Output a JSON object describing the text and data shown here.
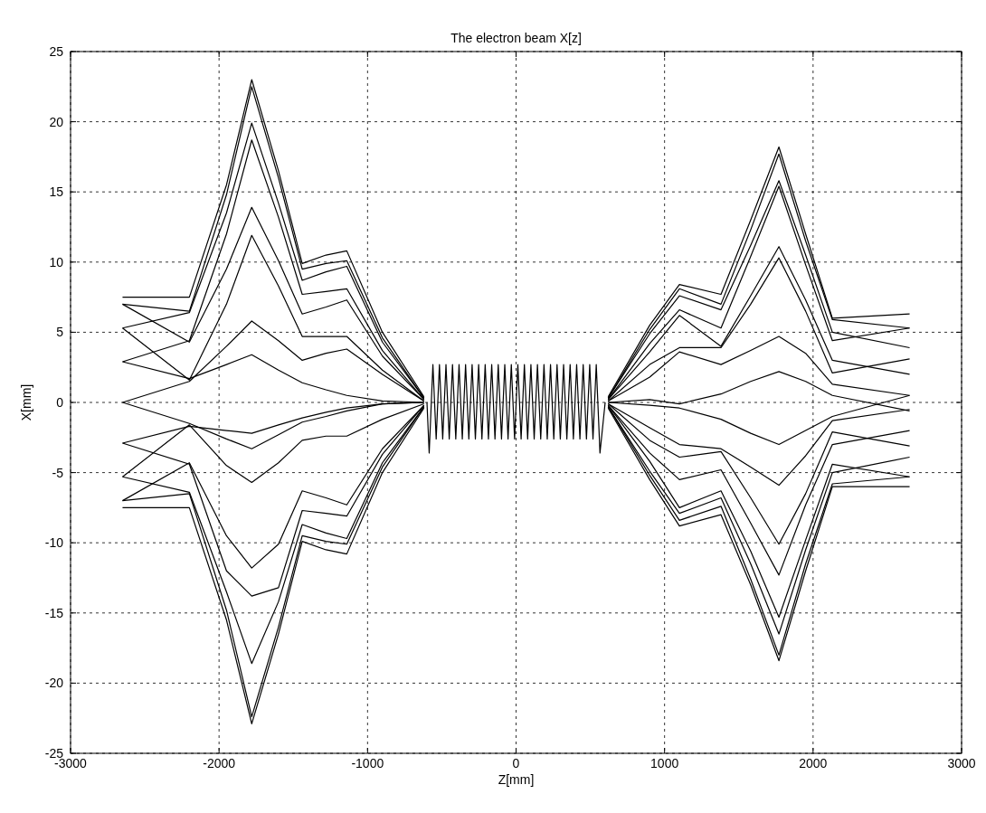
{
  "chart_data": {
    "type": "line",
    "title": "The electron beam X[z]",
    "xlabel": "Z[mm]",
    "ylabel": "X[mm]",
    "xlim": [
      -3000,
      3000
    ],
    "xticks": [
      -3000,
      -2000,
      -1000,
      0,
      1000,
      2000,
      3000
    ],
    "ylim": [
      -25,
      25
    ],
    "yticks": [
      -25,
      -20,
      -15,
      -10,
      -5,
      0,
      5,
      10,
      15,
      20,
      25
    ],
    "grid": true,
    "series": [
      {
        "color": "#000000",
        "x": [
          -2650,
          -2200,
          -1950,
          -1780,
          -1600,
          -1440,
          -1280,
          -1140,
          -900,
          -620
        ],
        "values": [
          7.5,
          7.5,
          15.5,
          23.0,
          16.5,
          9.9,
          10.5,
          10.8,
          5.0,
          0.4
        ]
      },
      {
        "color": "#000000",
        "x": [
          -2650,
          -2200,
          -1950,
          -1780,
          -1600,
          -1440,
          -1280,
          -1140,
          -900,
          -620
        ],
        "values": [
          7.0,
          6.5,
          14.8,
          22.5,
          16.0,
          9.5,
          9.9,
          10.1,
          4.6,
          0.3
        ]
      },
      {
        "color": "#000000",
        "x": [
          -2650,
          -2200,
          -1950,
          -1780,
          -1600,
          -1440,
          -1280,
          -1140,
          -900,
          -620
        ],
        "values": [
          5.3,
          6.4,
          13.5,
          19.9,
          14.2,
          8.7,
          9.3,
          9.7,
          4.3,
          0.3
        ]
      },
      {
        "color": "#000000",
        "x": [
          -2650,
          -2200,
          -1950,
          -1780,
          -1600,
          -1440,
          -1280,
          -1140,
          -900,
          -620
        ],
        "values": [
          2.9,
          4.4,
          12.0,
          18.7,
          13.2,
          7.7,
          7.9,
          8.1,
          3.7,
          0.2
        ]
      },
      {
        "color": "#000000",
        "x": [
          -2650,
          -2200,
          -1950,
          -1780,
          -1600,
          -1440,
          -1280,
          -1140,
          -900,
          -620
        ],
        "values": [
          7.0,
          4.3,
          9.5,
          13.9,
          10.1,
          6.3,
          6.8,
          7.3,
          3.3,
          0.2
        ]
      },
      {
        "color": "#000000",
        "x": [
          -2650,
          -2200,
          -1950,
          -1780,
          -1600,
          -1440,
          -1280,
          -1140,
          -900,
          -620
        ],
        "values": [
          5.3,
          1.6,
          7.0,
          11.9,
          8.3,
          4.7,
          4.7,
          4.7,
          2.3,
          0.1
        ]
      },
      {
        "color": "#000000",
        "x": [
          -2650,
          -2200,
          -1950,
          -1780,
          -1600,
          -1440,
          -1280,
          -1140,
          -900,
          -620
        ],
        "values": [
          0,
          1.5,
          4.0,
          5.8,
          4.4,
          3.0,
          3.5,
          3.8,
          2.0,
          0.1
        ]
      },
      {
        "color": "#000000",
        "x": [
          -2650,
          -2200,
          -1950,
          -1780,
          -1600,
          -1440,
          -1280,
          -1140,
          -900,
          -620
        ],
        "values": [
          2.9,
          1.7,
          2.7,
          3.4,
          2.3,
          1.4,
          0.9,
          0.5,
          0.1,
          0
        ]
      },
      {
        "color": "#000000",
        "x": [
          -2650,
          -2200,
          -1950,
          -1780,
          -1600,
          -1440,
          -1280,
          -1140,
          -900,
          -620
        ],
        "values": [
          -7.5,
          -7.5,
          -15.5,
          -22.9,
          -16.5,
          -9.9,
          -10.5,
          -10.8,
          -5.0,
          -0.4
        ]
      },
      {
        "color": "#000000",
        "x": [
          -2650,
          -2200,
          -1950,
          -1780,
          -1600,
          -1440,
          -1280,
          -1140,
          -900,
          -620
        ],
        "values": [
          -7.0,
          -6.5,
          -14.8,
          -22.4,
          -16.0,
          -9.5,
          -9.9,
          -10.1,
          -4.6,
          -0.3
        ]
      },
      {
        "color": "#000000",
        "x": [
          -2650,
          -2200,
          -1950,
          -1780,
          -1600,
          -1440,
          -1280,
          -1140,
          -900,
          -620
        ],
        "values": [
          -5.3,
          -6.4,
          -13.5,
          -18.6,
          -14.2,
          -8.7,
          -9.3,
          -9.7,
          -4.3,
          -0.3
        ]
      },
      {
        "color": "#000000",
        "x": [
          -2650,
          -2200,
          -1950,
          -1780,
          -1600,
          -1440,
          -1280,
          -1140,
          -900,
          -620
        ],
        "values": [
          -2.9,
          -4.4,
          -12.0,
          -13.8,
          -13.2,
          -7.7,
          -7.9,
          -8.1,
          -3.7,
          -0.2
        ]
      },
      {
        "color": "#000000",
        "x": [
          -2650,
          -2200,
          -1950,
          -1780,
          -1600,
          -1440,
          -1280,
          -1140,
          -900,
          -620
        ],
        "values": [
          -7.0,
          -4.3,
          -9.5,
          -11.8,
          -10.1,
          -6.3,
          -6.8,
          -7.3,
          -3.3,
          -0.2
        ]
      },
      {
        "color": "#000000",
        "x": [
          -2650,
          -2200,
          -1950,
          -1780,
          -1600,
          -1440,
          -1280,
          -1140,
          -900,
          -620
        ],
        "values": [
          -5.3,
          -1.6,
          -4.5,
          -5.7,
          -4.3,
          -2.7,
          -2.4,
          -2.4,
          -1.2,
          -0.1
        ]
      },
      {
        "color": "#000000",
        "x": [
          -2650,
          -2200,
          -1950,
          -1780,
          -1600,
          -1440,
          -1280,
          -1140,
          -900,
          -620
        ],
        "values": [
          0,
          -1.5,
          -2.6,
          -3.3,
          -2.3,
          -1.4,
          -1.0,
          -0.6,
          -0.1,
          0
        ]
      },
      {
        "color": "#000000",
        "x": [
          -2650,
          -2200,
          -1950,
          -1780,
          -1600,
          -1440,
          -1280,
          -1140,
          -900,
          -620
        ],
        "values": [
          -2.9,
          -1.7,
          -2.0,
          -2.2,
          -1.6,
          -1.1,
          -0.7,
          -0.4,
          -0.1,
          0
        ]
      },
      {
        "color": "#000000",
        "x": [
          620,
          900,
          1100,
          1380,
          1580,
          1770,
          1950,
          2130,
          2650
        ],
        "values": [
          0.4,
          5.5,
          8.4,
          7.7,
          13.0,
          18.2,
          12.0,
          6.0,
          6.3
        ]
      },
      {
        "color": "#000000",
        "x": [
          620,
          900,
          1100,
          1380,
          1580,
          1770,
          1950,
          2130,
          2650
        ],
        "values": [
          0.3,
          5.2,
          8.1,
          7.0,
          12.3,
          17.7,
          11.5,
          5.9,
          5.3
        ]
      },
      {
        "color": "#000000",
        "x": [
          620,
          900,
          1100,
          1380,
          1580,
          1770,
          1950,
          2130,
          2650
        ],
        "values": [
          0.3,
          4.9,
          7.6,
          6.6,
          11.2,
          15.8,
          10.5,
          5.0,
          3.9
        ]
      },
      {
        "color": "#000000",
        "x": [
          620,
          900,
          1100,
          1380,
          1580,
          1770,
          1950,
          2130,
          2650
        ],
        "values": [
          0.2,
          4.2,
          6.6,
          5.3,
          10.4,
          15.4,
          9.8,
          4.4,
          5.3
        ]
      },
      {
        "color": "#000000",
        "x": [
          620,
          900,
          1100,
          1380,
          1580,
          1770,
          1950,
          2130,
          2650
        ],
        "values": [
          0.2,
          3.6,
          6.2,
          4.0,
          7.6,
          11.1,
          7.3,
          3.0,
          2.0
        ]
      },
      {
        "color": "#000000",
        "x": [
          620,
          900,
          1100,
          1380,
          1580,
          1770,
          1950,
          2130,
          2650
        ],
        "values": [
          0.1,
          2.7,
          3.9,
          3.9,
          7.0,
          10.3,
          6.5,
          2.1,
          3.1
        ]
      },
      {
        "color": "#000000",
        "x": [
          620,
          900,
          1100,
          1380,
          1580,
          1770,
          1950,
          2130,
          2650
        ],
        "values": [
          0.1,
          1.8,
          3.6,
          2.7,
          3.7,
          4.7,
          3.5,
          1.3,
          0.5
        ]
      },
      {
        "color": "#000000",
        "x": [
          620,
          900,
          1100,
          1380,
          1580,
          1770,
          1950,
          2130,
          2650
        ],
        "values": [
          0,
          0.2,
          -0.1,
          0.6,
          1.5,
          2.2,
          1.5,
          0.5,
          -0.6
        ]
      },
      {
        "color": "#000000",
        "x": [
          620,
          900,
          1100,
          1380,
          1580,
          1770,
          1950,
          2130,
          2650
        ],
        "values": [
          -0.4,
          -5.5,
          -8.8,
          -8.0,
          -13.0,
          -18.4,
          -12.0,
          -6.0,
          -6.0
        ]
      },
      {
        "color": "#000000",
        "x": [
          620,
          900,
          1100,
          1380,
          1580,
          1770,
          1950,
          2130,
          2650
        ],
        "values": [
          -0.3,
          -5.2,
          -8.4,
          -7.4,
          -12.6,
          -18.0,
          -11.5,
          -5.8,
          -5.3
        ]
      },
      {
        "color": "#000000",
        "x": [
          620,
          900,
          1100,
          1380,
          1580,
          1770,
          1950,
          2130,
          2650
        ],
        "values": [
          -0.3,
          -4.9,
          -7.9,
          -6.8,
          -11.5,
          -16.5,
          -10.5,
          -5.0,
          -3.9
        ]
      },
      {
        "color": "#000000",
        "x": [
          620,
          900,
          1100,
          1380,
          1580,
          1770,
          1950,
          2130,
          2650
        ],
        "values": [
          -0.2,
          -4.2,
          -7.5,
          -6.3,
          -10.6,
          -15.3,
          -9.8,
          -4.4,
          -5.3
        ]
      },
      {
        "color": "#000000",
        "x": [
          620,
          900,
          1100,
          1380,
          1580,
          1770,
          1950,
          2130,
          2650
        ],
        "values": [
          -0.2,
          -3.6,
          -5.5,
          -4.8,
          -8.6,
          -12.3,
          -7.3,
          -3.0,
          -2.0
        ]
      },
      {
        "color": "#000000",
        "x": [
          620,
          900,
          1100,
          1380,
          1580,
          1770,
          1950,
          2130,
          2650
        ],
        "values": [
          -0.1,
          -2.7,
          -3.9,
          -3.5,
          -6.8,
          -10.1,
          -6.5,
          -2.1,
          -3.1
        ]
      },
      {
        "color": "#000000",
        "x": [
          620,
          900,
          1100,
          1380,
          1580,
          1770,
          1950,
          2130,
          2650
        ],
        "values": [
          -0.1,
          -1.8,
          -3.0,
          -3.3,
          -4.6,
          -5.9,
          -3.8,
          -1.3,
          -0.5
        ]
      },
      {
        "color": "#000000",
        "x": [
          620,
          900,
          1100,
          1380,
          1580,
          1770,
          1950,
          2130,
          2650
        ],
        "values": [
          0,
          -0.2,
          -0.4,
          -1.2,
          -2.2,
          -3.0,
          -2.0,
          -1.0,
          0.5
        ]
      },
      {
        "color": "#000000",
        "x": [
          -600,
          -585,
          -560,
          -538,
          -516,
          -494,
          -472,
          -450,
          -428,
          -406,
          -384,
          -362,
          -340,
          -318,
          -296,
          -274,
          -252,
          -230,
          -208,
          -186,
          -164,
          -142,
          -120,
          -98,
          -76,
          -54,
          -32,
          -10,
          12,
          34,
          56,
          78,
          100,
          122,
          144,
          166,
          188,
          210,
          232,
          254,
          276,
          298,
          320,
          342,
          364,
          386,
          408,
          430,
          452,
          474,
          496,
          518,
          540,
          565,
          600
        ],
        "values": [
          0,
          -3.6,
          2.7,
          -2.6,
          2.7,
          -2.6,
          2.7,
          -2.6,
          2.7,
          -2.6,
          2.7,
          -2.6,
          2.7,
          -2.6,
          2.7,
          -2.6,
          2.7,
          -2.6,
          2.7,
          -2.6,
          2.7,
          -2.6,
          2.7,
          -2.6,
          2.7,
          -2.6,
          2.7,
          -2.6,
          2.7,
          -2.6,
          2.7,
          -2.6,
          2.7,
          -2.6,
          2.7,
          -2.6,
          2.7,
          -2.6,
          2.7,
          -2.6,
          2.7,
          -2.6,
          2.7,
          -2.6,
          2.7,
          -2.6,
          2.7,
          -2.6,
          2.7,
          -2.6,
          2.7,
          -2.6,
          2.7,
          -3.6,
          0
        ]
      }
    ]
  }
}
